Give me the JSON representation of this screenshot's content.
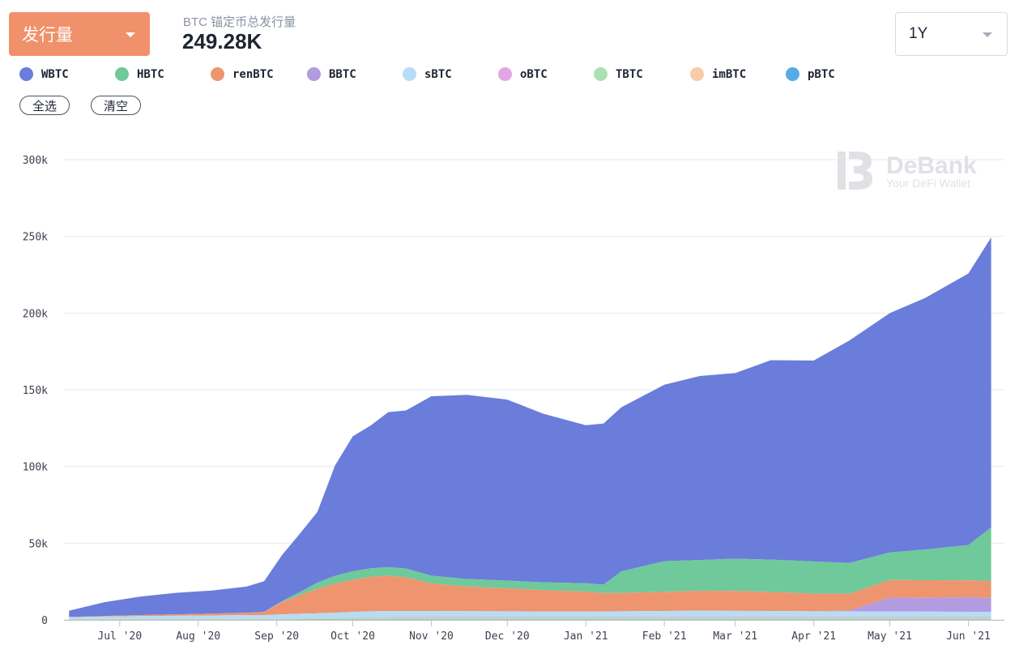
{
  "header": {
    "metric_label": "发行量",
    "subtitle": "BTC 锚定币总发行量",
    "total": "249.28K",
    "range_label": "1Y"
  },
  "buttons": {
    "select_all": "全选",
    "clear": "清空"
  },
  "watermark": {
    "brand": "DeBank",
    "tagline": "Your DeFi Wallet"
  },
  "legend": [
    {
      "name": "WBTC",
      "color": "#6a7ddb"
    },
    {
      "name": "HBTC",
      "color": "#6fc99a"
    },
    {
      "name": "renBTC",
      "color": "#ee9570"
    },
    {
      "name": "BBTC",
      "color": "#b39be0"
    },
    {
      "name": "sBTC",
      "color": "#b8dcf5"
    },
    {
      "name": "oBTC",
      "color": "#e3a5e3"
    },
    {
      "name": "TBTC",
      "color": "#ace0b3"
    },
    {
      "name": "imBTC",
      "color": "#f7cca6"
    },
    {
      "name": "pBTC",
      "color": "#59abe6"
    }
  ],
  "chart_data": {
    "type": "area",
    "stacked": true,
    "x": [
      "2020-06-11",
      "2020-06-25",
      "2020-07-09",
      "2020-07-23",
      "2020-08-06",
      "2020-08-20",
      "2020-08-27",
      "2020-09-03",
      "2020-09-10",
      "2020-09-17",
      "2020-09-24",
      "2020-10-01",
      "2020-10-08",
      "2020-10-15",
      "2020-10-22",
      "2020-11-01",
      "2020-11-15",
      "2020-12-01",
      "2020-12-15",
      "2021-01-01",
      "2021-01-08",
      "2021-01-15",
      "2021-02-01",
      "2021-02-15",
      "2021-03-01",
      "2021-03-15",
      "2021-04-01",
      "2021-04-15",
      "2021-05-01",
      "2021-05-15",
      "2021-06-01",
      "2021-06-10"
    ],
    "x_ticks": [
      "Jul '20",
      "Aug '20",
      "Sep '20",
      "Oct '20",
      "Nov '20",
      "Dec '20",
      "Jan '21",
      "Feb '21",
      "Mar '21",
      "Apr '21",
      "May '21",
      "Jun '21"
    ],
    "x_tick_dates": [
      "2020-07-01",
      "2020-08-01",
      "2020-09-01",
      "2020-10-01",
      "2020-11-01",
      "2020-12-01",
      "2021-01-01",
      "2021-02-01",
      "2021-03-01",
      "2021-04-01",
      "2021-05-01",
      "2021-06-01"
    ],
    "y_ticks": [
      "0",
      "50k",
      "100k",
      "150k",
      "200k",
      "250k",
      "300k"
    ],
    "ylim": [
      0,
      300000
    ],
    "grid": true,
    "series": [
      {
        "name": "pBTC",
        "values": [
          100,
          100,
          100,
          100,
          100,
          100,
          100,
          150,
          200,
          200,
          200,
          200,
          200,
          200,
          200,
          200,
          200,
          200,
          200,
          200,
          200,
          200,
          200,
          200,
          200,
          200,
          200,
          200,
          200,
          200,
          200,
          200
        ]
      },
      {
        "name": "imBTC",
        "values": [
          200,
          250,
          300,
          300,
          300,
          300,
          300,
          300,
          300,
          300,
          300,
          300,
          300,
          300,
          300,
          300,
          300,
          300,
          300,
          300,
          300,
          300,
          300,
          300,
          300,
          300,
          300,
          300,
          300,
          300,
          300,
          300
        ]
      },
      {
        "name": "TBTC",
        "values": [
          300,
          300,
          300,
          300,
          300,
          300,
          300,
          400,
          500,
          600,
          700,
          800,
          900,
          1000,
          1000,
          1000,
          1000,
          1000,
          1000,
          1000,
          1000,
          1000,
          1000,
          1000,
          1000,
          1000,
          1000,
          1000,
          1000,
          1000,
          1000,
          1000
        ]
      },
      {
        "name": "oBTC",
        "values": [
          0,
          0,
          0,
          0,
          0,
          0,
          0,
          0,
          0,
          0,
          0,
          100,
          200,
          300,
          400,
          500,
          500,
          500,
          500,
          500,
          500,
          500,
          500,
          500,
          500,
          500,
          500,
          500,
          500,
          500,
          500,
          500
        ]
      },
      {
        "name": "sBTC",
        "values": [
          1200,
          1500,
          1800,
          2000,
          2200,
          2500,
          2500,
          2800,
          3000,
          3200,
          3500,
          3800,
          4000,
          4000,
          3900,
          3800,
          3700,
          3600,
          3500,
          3400,
          3500,
          3600,
          3800,
          4000,
          3900,
          3800,
          3600,
          3600,
          3500,
          3400,
          3300,
          3300
        ]
      },
      {
        "name": "BBTC",
        "values": [
          0,
          0,
          0,
          0,
          0,
          0,
          0,
          0,
          0,
          0,
          0,
          0,
          0,
          0,
          0,
          0,
          0,
          0,
          0,
          0,
          0,
          0,
          0,
          0,
          0,
          0,
          0,
          500,
          9000,
          9000,
          9500,
          9000
        ]
      },
      {
        "name": "renBTC",
        "values": [
          200,
          400,
          700,
          900,
          1200,
          1500,
          2000,
          8000,
          12000,
          16000,
          19000,
          21000,
          22500,
          23000,
          22000,
          18000,
          16000,
          15000,
          14000,
          13000,
          12000,
          12000,
          12500,
          13000,
          13000,
          12500,
          11500,
          11000,
          11500,
          11500,
          11000,
          11000
        ]
      },
      {
        "name": "HBTC",
        "values": [
          0,
          0,
          0,
          0,
          0,
          0,
          0,
          500,
          2000,
          4000,
          5000,
          5500,
          5500,
          5600,
          5700,
          5000,
          5000,
          5000,
          5000,
          5500,
          5500,
          14000,
          20000,
          20000,
          21000,
          21000,
          21000,
          20000,
          18000,
          20000,
          23000,
          35000
        ]
      },
      {
        "name": "WBTC",
        "values": [
          4000,
          9000,
          12000,
          14000,
          15000,
          17000,
          20000,
          30000,
          38000,
          46000,
          72000,
          88000,
          93000,
          101000,
          103000,
          117000,
          120000,
          118000,
          110000,
          103000,
          105000,
          107000,
          115000,
          120000,
          121000,
          130000,
          131000,
          145000,
          156000,
          164000,
          177000,
          189000
        ]
      }
    ]
  }
}
